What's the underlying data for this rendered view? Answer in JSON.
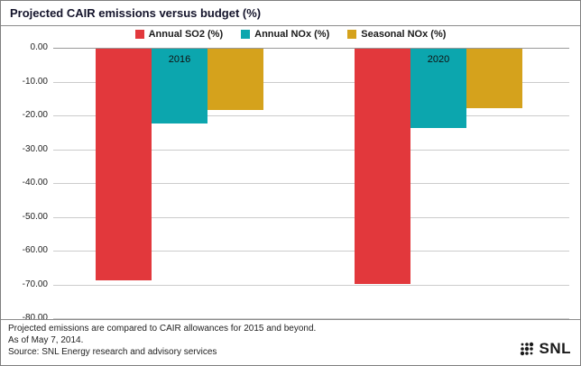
{
  "title": "Projected CAIR emissions versus budget (%)",
  "chart_data": {
    "type": "bar",
    "title": "Projected CAIR emissions versus budget (%)",
    "categories": [
      "2016",
      "2020"
    ],
    "series": [
      {
        "name": "Annual SO2 (%)",
        "color": "#e2383c",
        "values": [
          -68.5,
          -69.5
        ]
      },
      {
        "name": "Annual NOx (%)",
        "color": "#0ca6ae",
        "values": [
          -22.0,
          -23.5
        ]
      },
      {
        "name": "Seasonal NOx (%)",
        "color": "#d5a21c",
        "values": [
          -18.0,
          -17.5
        ]
      }
    ],
    "ylim": [
      0,
      -80
    ],
    "ytick_step": 10,
    "yticks": [
      "0.00",
      "-10.00",
      "-20.00",
      "-30.00",
      "-40.00",
      "-50.00",
      "-60.00",
      "-70.00",
      "-80.00"
    ],
    "grid": true,
    "legend_position": "top"
  },
  "footer": {
    "line1": "Projected emissions are compared to CAIR allowances for 2015 and beyond.",
    "line2": "As of May 7, 2014.",
    "line3": "Source: SNL Energy research and advisory services"
  },
  "logo": {
    "text": "SNL"
  }
}
